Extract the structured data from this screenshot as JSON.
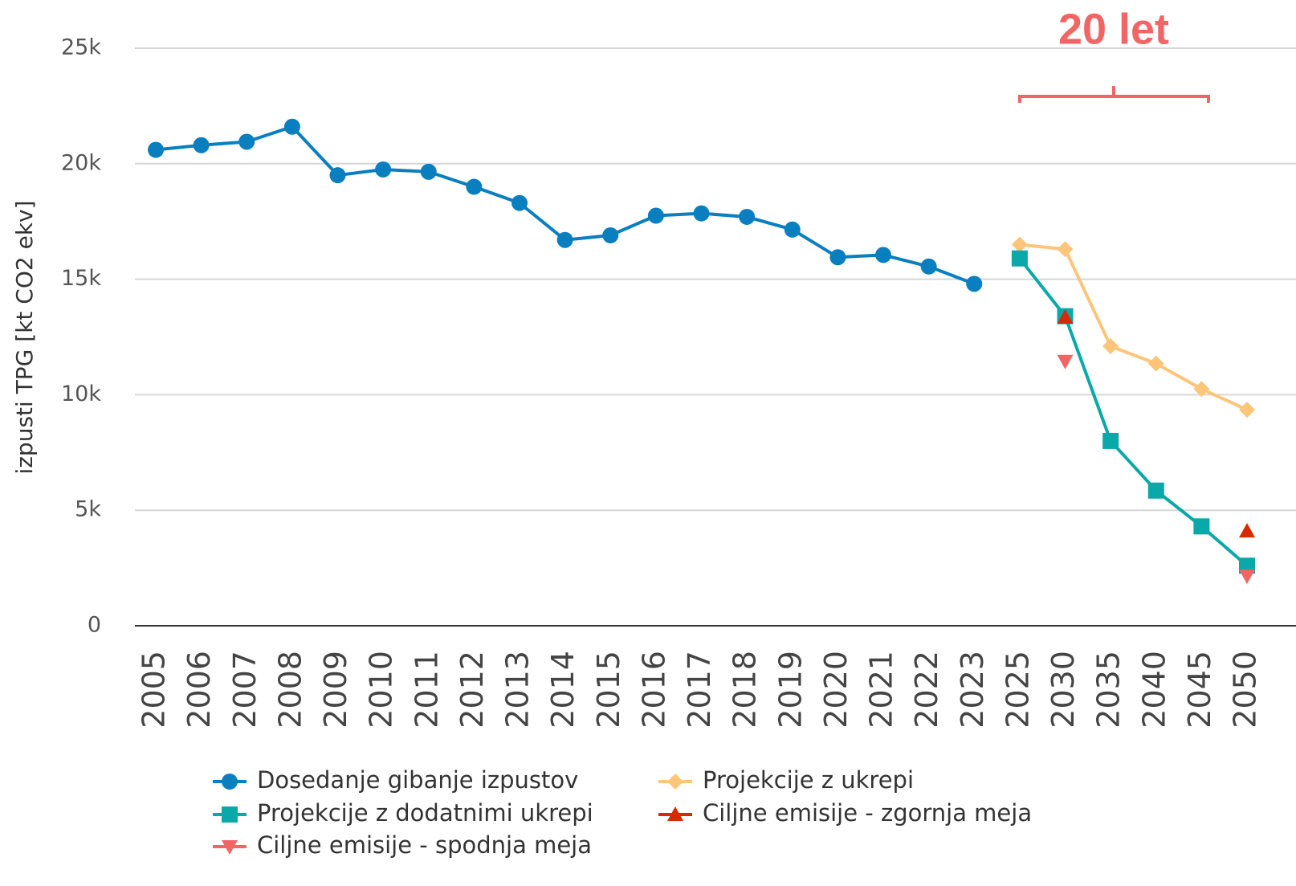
{
  "chart_data": {
    "type": "line",
    "y_label": "izpusti TPG [kt CO2 ekv]",
    "annotation": "20 let",
    "categories": [
      "2005",
      "2006",
      "2007",
      "2008",
      "2009",
      "2010",
      "2011",
      "2012",
      "2013",
      "2014",
      "2015",
      "2016",
      "2017",
      "2018",
      "2019",
      "2020",
      "2021",
      "2022",
      "2023",
      "2025",
      "2030",
      "2035",
      "2040",
      "2045",
      "2050"
    ],
    "ylim": [
      0,
      25000
    ],
    "yticks": [
      0,
      {
        "value": 5000,
        "label": "5k"
      },
      {
        "value": 10000,
        "label": "10k"
      },
      {
        "value": 15000,
        "label": "15k"
      },
      {
        "value": 20000,
        "label": "20k"
      },
      {
        "value": 25000,
        "label": "25k"
      }
    ],
    "grid": true,
    "legend": "bottom",
    "series": [
      {
        "name": "Dosedanje gibanje izpustov",
        "color": "#0a7fbf",
        "marker": "circle",
        "line": true,
        "values": [
          20600,
          20800,
          20950,
          21600,
          19500,
          19750,
          19650,
          19000,
          18300,
          16700,
          16900,
          17750,
          17850,
          17700,
          17150,
          15950,
          16050,
          15550,
          14800,
          null,
          null,
          null,
          null,
          null,
          null
        ]
      },
      {
        "name": "Projekcije z ukrepi",
        "color": "#fcc57a",
        "marker": "diamond",
        "line": true,
        "values": [
          null,
          null,
          null,
          null,
          null,
          null,
          null,
          null,
          null,
          null,
          null,
          null,
          null,
          null,
          null,
          null,
          null,
          null,
          null,
          16500,
          16300,
          12100,
          11350,
          10250,
          9350
        ]
      },
      {
        "name": "Projekcije z dodatnimi ukrepi",
        "color": "#0aa8a8",
        "marker": "square",
        "line": true,
        "values": [
          null,
          null,
          null,
          null,
          null,
          null,
          null,
          null,
          null,
          null,
          null,
          null,
          null,
          null,
          null,
          null,
          null,
          null,
          null,
          15900,
          13400,
          8000,
          5850,
          4300,
          2600
        ]
      },
      {
        "name": "Ciljne emisije - zgornja meja",
        "color": "#d62b00",
        "marker": "triangle-up",
        "line": false,
        "values": [
          null,
          null,
          null,
          null,
          null,
          null,
          null,
          null,
          null,
          null,
          null,
          null,
          null,
          null,
          null,
          null,
          null,
          null,
          null,
          null,
          13350,
          null,
          null,
          null,
          4100
        ]
      },
      {
        "name": "Ciljne emisije - spodnja meja",
        "color": "#f26565",
        "marker": "triangle-down",
        "line": false,
        "values": [
          null,
          null,
          null,
          null,
          null,
          null,
          null,
          null,
          null,
          null,
          null,
          null,
          null,
          null,
          null,
          null,
          null,
          null,
          null,
          null,
          11450,
          null,
          null,
          null,
          2150
        ]
      }
    ]
  }
}
